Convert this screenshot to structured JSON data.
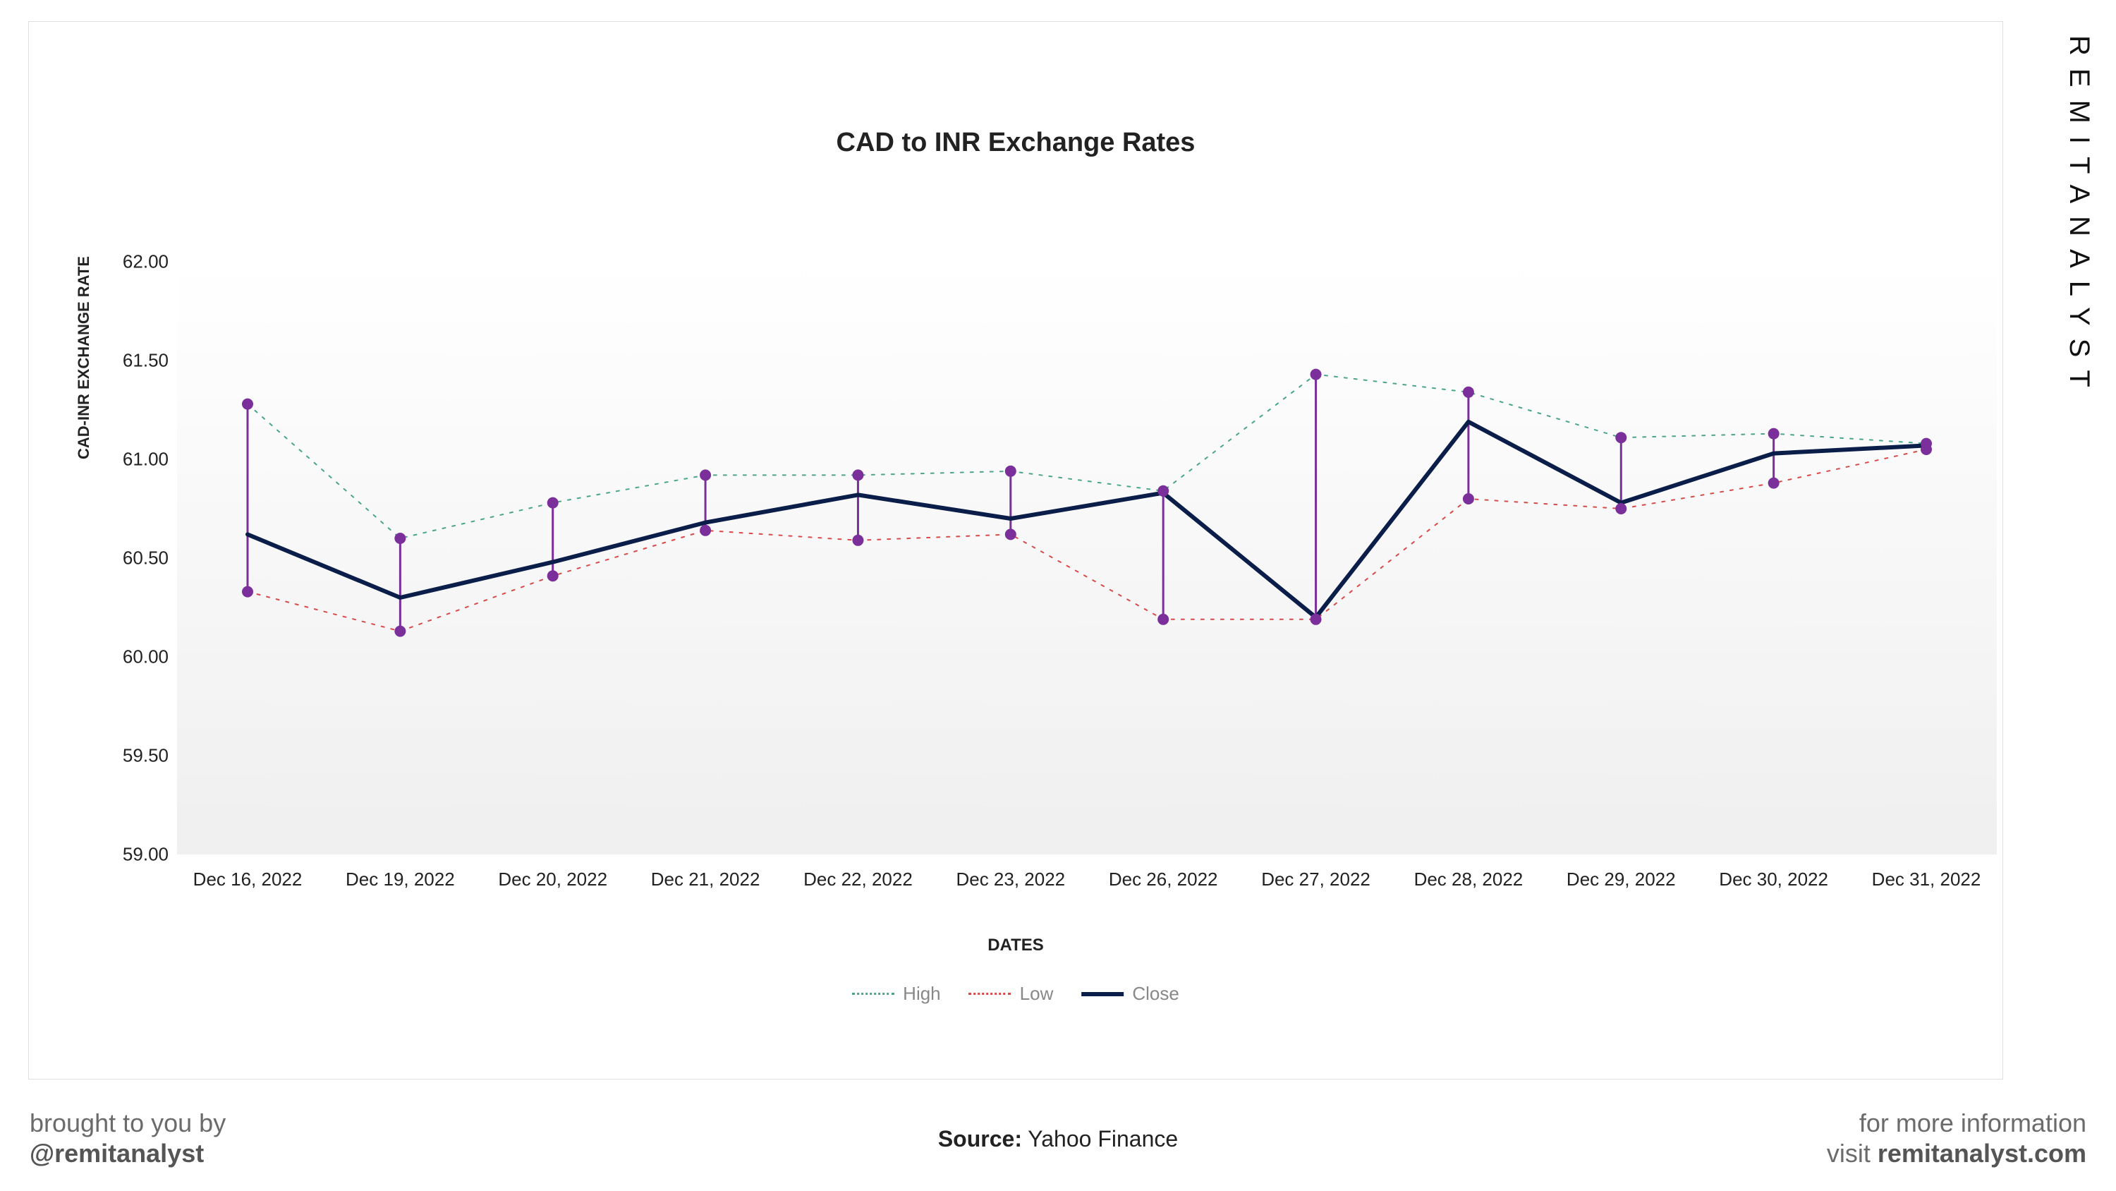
{
  "chart": {
    "type": "line-high-low-close",
    "title": "CAD to INR Exchange Rates",
    "title_fontsize": 38,
    "x_label": "DATES",
    "y_label": "CAD-INR EXCHANGE RATE",
    "label_fontsize": 24,
    "tick_fontsize": 26,
    "ylim": [
      59.0,
      62.0
    ],
    "ytick_step": 0.5,
    "y_ticks": [
      "59.00",
      "59.50",
      "60.00",
      "60.50",
      "61.00",
      "61.50",
      "62.00"
    ],
    "background_color": "#ffffff",
    "plot_bg_gradient_from": "rgba(230,230,230,0.0)",
    "plot_bg_gradient_to": "rgba(210,210,210,0.35)",
    "dates": [
      "Dec 16, 2022",
      "Dec 19, 2022",
      "Dec 20, 2022",
      "Dec 21, 2022",
      "Dec 22, 2022",
      "Dec 23, 2022",
      "Dec 26, 2022",
      "Dec 27, 2022",
      "Dec 28, 2022",
      "Dec 29, 2022",
      "Dec 30, 2022",
      "Dec 31, 2022"
    ],
    "series": {
      "high": {
        "label": "High",
        "color": "#4aa58a",
        "style": "dotted",
        "width": 2,
        "values": [
          61.28,
          60.6,
          60.78,
          60.92,
          60.92,
          60.94,
          60.84,
          61.43,
          61.34,
          61.11,
          61.13,
          61.08
        ]
      },
      "low": {
        "label": "Low",
        "color": "#d84a4a",
        "style": "dotted",
        "width": 2,
        "values": [
          60.33,
          60.13,
          60.41,
          60.64,
          60.59,
          60.62,
          60.19,
          60.19,
          60.8,
          60.75,
          60.88,
          61.05
        ]
      },
      "close": {
        "label": "Close",
        "color": "#0b1e4a",
        "style": "solid",
        "width": 6,
        "values": [
          60.62,
          60.3,
          60.48,
          60.68,
          60.82,
          60.7,
          60.83,
          60.2,
          61.19,
          60.78,
          61.03,
          61.07
        ]
      }
    },
    "marker": {
      "color": "#7a2f9a",
      "radius": 8,
      "stroke": "#7a2f9a"
    },
    "hl_bar": {
      "color": "#7a2f9a",
      "width": 3
    },
    "legend_position": "bottom-center"
  },
  "footer": {
    "left_line1": "brought to you by",
    "left_line2": "@remitanalyst",
    "center_label": "Source:",
    "center_value": "Yahoo Finance",
    "right_line1": "for more information",
    "right_line2_a": "visit ",
    "right_line2_b": "remitanalyst.com"
  },
  "side_brand": "REMITANALYST"
}
